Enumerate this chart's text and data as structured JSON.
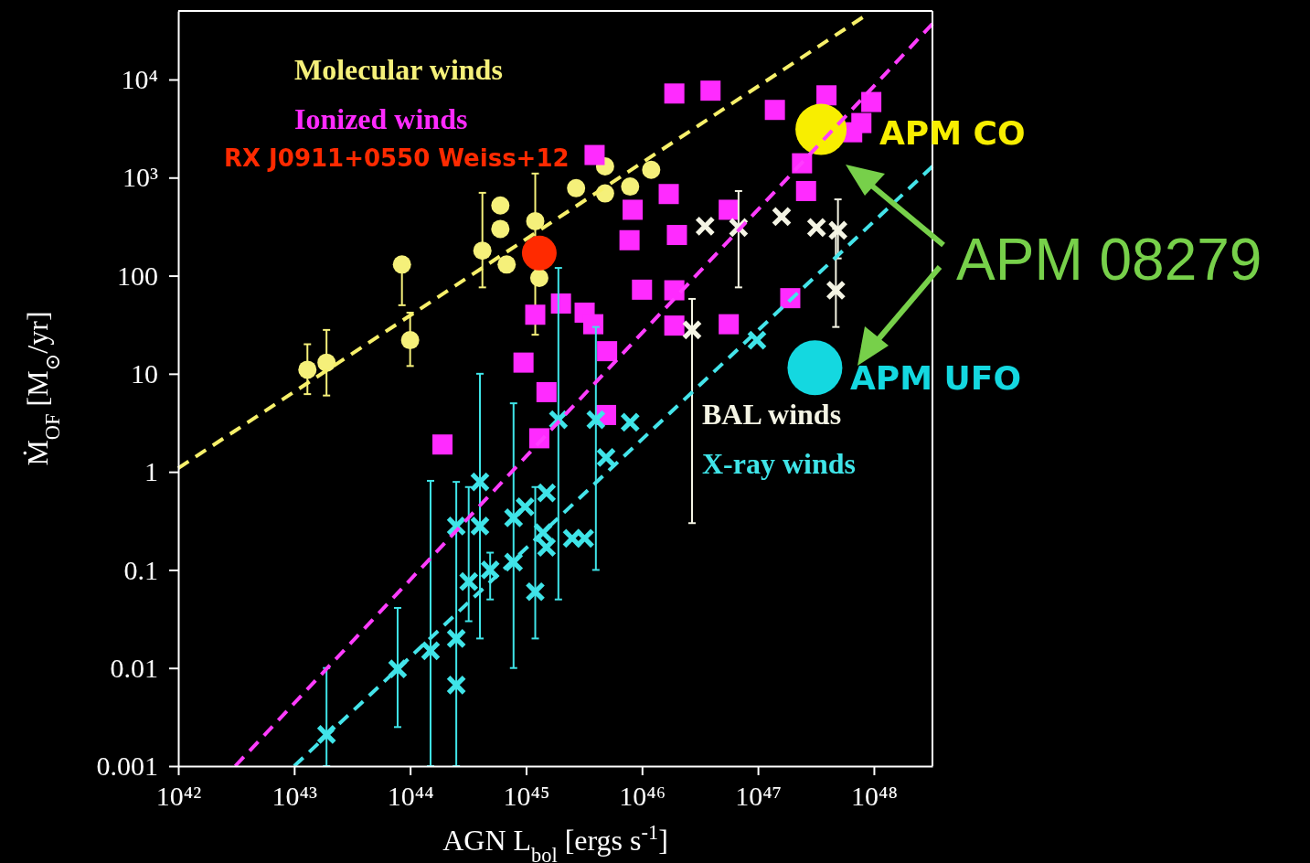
{
  "chart_data": {
    "type": "scatter",
    "xlabel": "AGN L$_{bol}$ [ergs s$^{-1}$]",
    "ylabel": "Ṁ$_{OF}$  [M$_{⊙}$/yr]",
    "log": "xy",
    "grid": false,
    "xlim": [
      1e+42,
      3.2e+48
    ],
    "ylim": [
      0.001,
      50000
    ],
    "xticks": [
      {
        "value": 1e+42,
        "label": "10⁴²"
      },
      {
        "value": 1e+43,
        "label": "10⁴³"
      },
      {
        "value": 1e+44,
        "label": "10⁴⁴"
      },
      {
        "value": 1e+45,
        "label": "10⁴⁵"
      },
      {
        "value": 1e+46,
        "label": "10⁴⁶"
      },
      {
        "value": 1e+47,
        "label": "10⁴⁷"
      },
      {
        "value": 1e+48,
        "label": "10⁴⁸"
      }
    ],
    "yticks": [
      0.001,
      0.01,
      0.1,
      1,
      10,
      100,
      {
        "value": 1000,
        "label": "10³"
      },
      {
        "value": 10000,
        "label": "10⁴"
      }
    ],
    "annotations": [
      "APM 08279"
    ],
    "series": [
      {
        "name": "Molecular winds",
        "color": "#f5f07a",
        "marker": "circle",
        "x": [
          1.3e+43,
          1.9e+43,
          8.5e+43,
          1e+44,
          4.2e+44,
          6e+44,
          6e+44,
          6.8e+44,
          1.2e+45,
          1.3e+45,
          2.7e+45,
          4.8e+45,
          4.8e+45,
          7.9e+45,
          1.2e+46
        ],
        "values": [
          11,
          13,
          130,
          22,
          180,
          300,
          520,
          130,
          360,
          95,
          780,
          1300,
          690,
          810,
          1200
        ],
        "errors": [
          [
            6.2,
            20
          ],
          [
            6,
            28
          ],
          [
            50,
            150
          ],
          [
            12,
            42
          ],
          [
            76,
            700
          ],
          null,
          null,
          null,
          [
            25,
            1100
          ],
          null,
          null,
          null,
          null,
          null,
          null
        ]
      },
      {
        "name": "Ionized winds",
        "color": "#ff2bff",
        "marker": "square",
        "x": [
          1.9e+46,
          3.9e+46,
          3.9e+47,
          9.5e+47,
          7.8e+47,
          6.5e+47,
          1.4e+47,
          2.4e+47,
          2.6e+47,
          1.7e+46,
          8.3e+45,
          7.8e+45,
          3.9e+45,
          2e+46,
          1.9e+46,
          1.9e+46,
          5.6e+46,
          5.6e+46,
          1.9e+47,
          1e+46,
          2e+45,
          3.2e+45,
          3.8e+45,
          9.5e+44,
          1.5e+45,
          1.3e+45,
          1.9e+44,
          5e+45,
          4.9e+45,
          1.2e+45
        ],
        "values": [
          7200,
          7700,
          6900,
          5900,
          3600,
          2900,
          4900,
          1400,
          730,
          680,
          470,
          230,
          1700,
          260,
          71,
          31,
          32,
          470,
          59,
          72,
          52,
          42,
          32,
          13,
          6.5,
          2.2,
          1.9,
          17,
          3.8,
          40
        ]
      },
      {
        "name": "BAL winds",
        "color": "#f4f4e4",
        "marker": "cross",
        "x": [
          3.5e+46,
          6.8e+46,
          1.6e+47,
          3.2e+47,
          4.9e+47,
          4.7e+47,
          2.7e+46
        ],
        "values": [
          320,
          310,
          400,
          310,
          290,
          71,
          28
        ],
        "errors": [
          null,
          [
            76,
            730
          ],
          null,
          null,
          [
            150,
            600
          ],
          [
            30,
            300
          ],
          [
            0.3,
            58
          ]
        ]
      },
      {
        "name": "X-ray winds",
        "color": "#3fe4e8",
        "marker": "cross",
        "x": [
          1.9e+43,
          7.8e+43,
          1.5e+44,
          2.5e+44,
          2.5e+44,
          3.2e+44,
          2.5e+44,
          4e+44,
          4e+44,
          4.9e+44,
          7.8e+44,
          7.8e+44,
          9.8e+44,
          1.2e+45,
          1.5e+45,
          1.5e+45,
          1.4e+45,
          1.9e+45,
          4e+45,
          2.5e+45,
          3.2e+45,
          4.9e+45,
          7.9e+45,
          9.8e+46
        ],
        "values": [
          0.0021,
          0.0098,
          0.015,
          0.02,
          0.0067,
          0.076,
          0.28,
          0.28,
          0.79,
          0.1,
          0.34,
          0.12,
          0.44,
          0.06,
          0.17,
          0.61,
          0.24,
          3.4,
          3.4,
          0.21,
          0.21,
          1.4,
          3.2,
          22
        ],
        "errors": [
          [
            0.001,
            0.01
          ],
          [
            0.0025,
            0.041
          ],
          [
            0.001,
            0.81
          ],
          [
            0.001,
            0.79
          ],
          null,
          [
            0.03,
            0.7
          ],
          null,
          [
            0.02,
            10
          ],
          null,
          [
            0.05,
            0.15
          ],
          [
            0.01,
            5
          ],
          null,
          null,
          [
            0.02,
            0.7
          ],
          null,
          null,
          null,
          [
            0.05,
            120
          ],
          [
            0.1,
            30
          ],
          null,
          null,
          null,
          null,
          null
        ]
      },
      {
        "name": "RX J0911+0550 Weiss+12",
        "color": "#ff2a00",
        "marker": "circle",
        "x": [
          1.3e+45
        ],
        "values": [
          170
        ]
      },
      {
        "name": "APM CO",
        "color": "#f8ee00",
        "marker": "circle",
        "x": [
          3.5e+47
        ],
        "values": [
          3100
        ]
      },
      {
        "name": "APM UFO",
        "color": "#14d8e0",
        "marker": "circle",
        "x": [
          3.1e+47
        ],
        "values": [
          11.5
        ]
      },
      {
        "type": "line",
        "color": "#f7f06a",
        "line_style": "dashed",
        "x": [
          1e+42,
          8e+47
        ],
        "values": [
          1.09,
          43000
        ]
      },
      {
        "type": "line",
        "color": "#ff3cff",
        "line_style": "dashed",
        "x": [
          3.1e+42,
          3.2e+48
        ],
        "values": [
          0.001,
          37000
        ]
      },
      {
        "type": "line",
        "color": "#44e4ea",
        "line_style": "dashed",
        "x": [
          1e+43,
          3.2e+48
        ],
        "values": [
          0.001,
          1300
        ]
      }
    ]
  }
}
